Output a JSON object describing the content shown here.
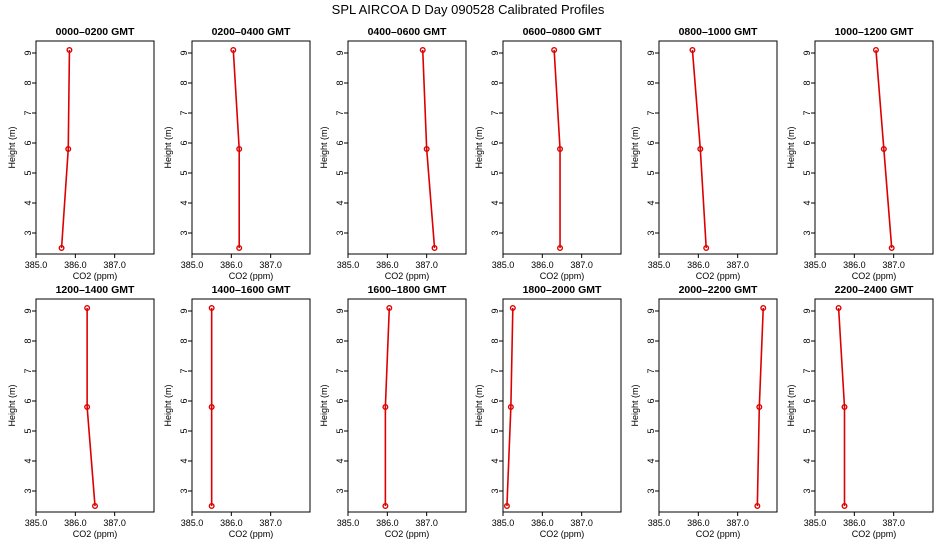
{
  "title": "SPL AIRCOA D  Day 090528  Calibrated Profiles",
  "chart_data": {
    "type": "line",
    "orientation": "profile (x = CO2, y = height)",
    "xlabel": "CO2 (ppm)",
    "ylabel": "Height (m)",
    "xlim": [
      385.0,
      388.0
    ],
    "ylim": [
      2.3,
      9.4
    ],
    "x_ticks": [
      "385.0",
      "386.0",
      "387.0"
    ],
    "y_ticks": [
      "3",
      "4",
      "5",
      "6",
      "7",
      "8",
      "9"
    ],
    "grid": false,
    "line_color": "#dd0000",
    "heights": [
      9.1,
      5.8,
      2.5
    ],
    "panels": [
      {
        "title": "0000–0200 GMT",
        "values": [
          385.85,
          385.82,
          385.65
        ]
      },
      {
        "title": "0200–0400 GMT",
        "values": [
          386.05,
          386.2,
          386.2
        ]
      },
      {
        "title": "0400–0600 GMT",
        "values": [
          386.9,
          387.0,
          387.2
        ]
      },
      {
        "title": "0600–0800 GMT",
        "values": [
          386.3,
          386.45,
          386.45
        ]
      },
      {
        "title": "0800–1000 GMT",
        "values": [
          385.85,
          386.05,
          386.2
        ]
      },
      {
        "title": "1000–1200 GMT",
        "values": [
          386.55,
          386.75,
          386.95
        ]
      },
      {
        "title": "1200–1400 GMT",
        "values": [
          386.3,
          386.3,
          386.5
        ]
      },
      {
        "title": "1400–1600 GMT",
        "values": [
          385.5,
          385.5,
          385.5
        ]
      },
      {
        "title": "1600–1800 GMT",
        "values": [
          386.05,
          385.95,
          385.95
        ]
      },
      {
        "title": "1800–2000 GMT",
        "values": [
          385.25,
          385.2,
          385.1
        ]
      },
      {
        "title": "2000–2200 GMT",
        "values": [
          387.65,
          387.55,
          387.5
        ]
      },
      {
        "title": "2200–2400 GMT",
        "values": [
          385.6,
          385.75,
          385.75
        ]
      }
    ]
  }
}
